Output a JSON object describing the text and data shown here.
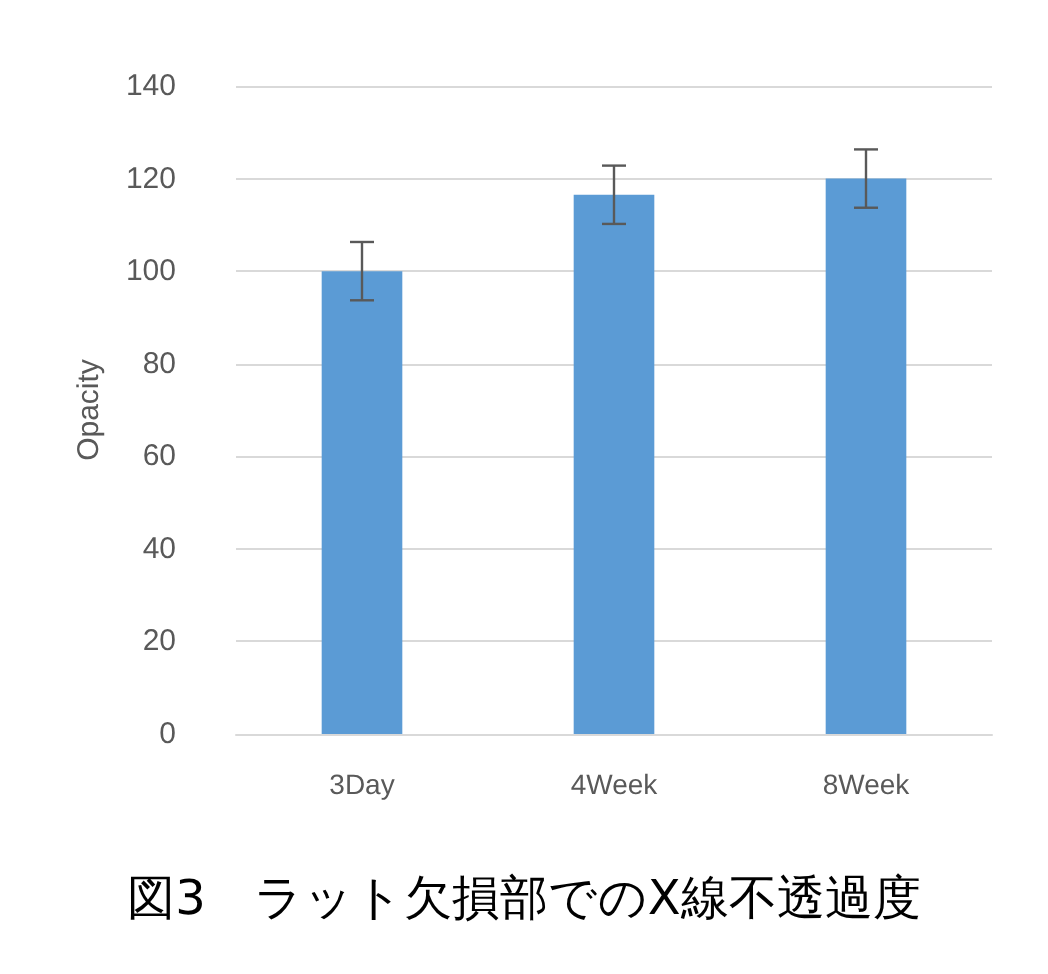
{
  "chart_data": {
    "type": "bar",
    "ylabel": "Opacity",
    "categories": [
      "3Day",
      "4Week",
      "8Week"
    ],
    "values": [
      100,
      116.5,
      120
    ],
    "errors": [
      6.3,
      6.3,
      6.3
    ],
    "color": "#5b9bd5",
    "ylim": [
      0,
      140
    ],
    "yticks": [
      0,
      20,
      40,
      60,
      80,
      100,
      120,
      140
    ],
    "grid": "y",
    "annotations": [
      "図3　ラット欠損部でのX線不透過度"
    ]
  }
}
